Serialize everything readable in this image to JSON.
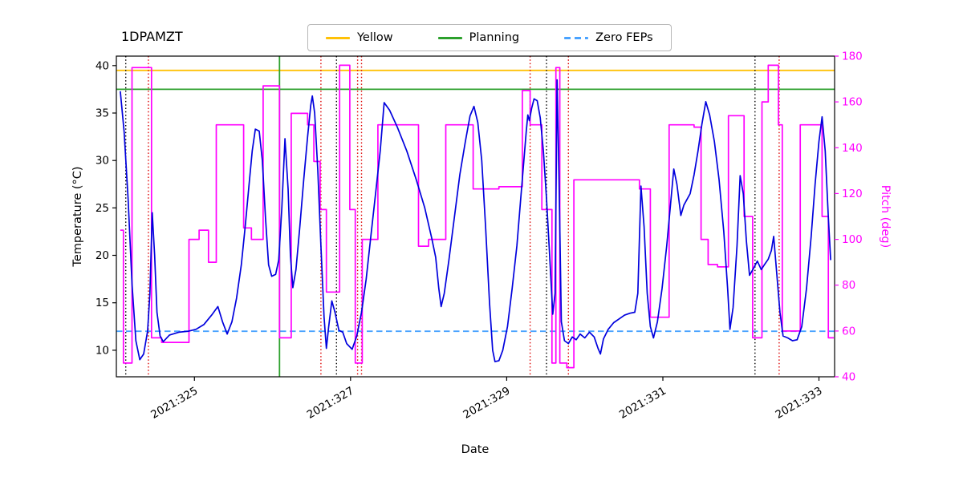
{
  "title": "1DPAMZT",
  "chart_data": {
    "type": "line",
    "title": "1DPAMZT",
    "xlabel": "Date",
    "ylabel_left": "Temperature (°C)",
    "ylabel_right": "Pitch (deg)",
    "legend_position": "top-center",
    "grid": false,
    "x_domain": [
      324.0,
      333.2
    ],
    "x_ticks": [
      {
        "v": 325,
        "label": "2021:325"
      },
      {
        "v": 327,
        "label": "2021:327"
      },
      {
        "v": 329,
        "label": "2021:329"
      },
      {
        "v": 331,
        "label": "2021:331"
      },
      {
        "v": 333,
        "label": "2021:333"
      }
    ],
    "y_left": {
      "range": [
        7.2,
        41.0
      ],
      "ticks": [
        10,
        15,
        20,
        25,
        30,
        35,
        40
      ],
      "color": "#000000"
    },
    "y_right": {
      "range": [
        40,
        180
      ],
      "ticks": [
        40,
        60,
        80,
        100,
        120,
        140,
        160,
        180
      ],
      "color": "#ff00ff"
    },
    "hlines": [
      {
        "label": "Yellow",
        "y": 39.5,
        "color": "#ffc107",
        "style": "solid"
      },
      {
        "label": "Planning",
        "y": 37.5,
        "color": "#2ca02c",
        "style": "solid"
      },
      {
        "label": "Zero FEPs",
        "y": 12.0,
        "color": "#4aa3ff",
        "style": "dashed"
      }
    ],
    "vlines": [
      {
        "x": 324.12,
        "color": "#000000",
        "style": "dotted"
      },
      {
        "x": 326.82,
        "color": "#000000",
        "style": "dotted"
      },
      {
        "x": 329.51,
        "color": "#000000",
        "style": "dotted"
      },
      {
        "x": 332.18,
        "color": "#000000",
        "style": "dotted"
      },
      {
        "x": 324.41,
        "color": "#dd0000",
        "style": "dotted"
      },
      {
        "x": 326.62,
        "color": "#dd0000",
        "style": "dotted"
      },
      {
        "x": 327.09,
        "color": "#dd0000",
        "style": "dotted"
      },
      {
        "x": 327.14,
        "color": "#dd0000",
        "style": "dotted"
      },
      {
        "x": 329.3,
        "color": "#dd0000",
        "style": "dotted"
      },
      {
        "x": 329.79,
        "color": "#dd0000",
        "style": "dotted"
      },
      {
        "x": 332.49,
        "color": "#dd0000",
        "style": "dotted"
      },
      {
        "x": 326.09,
        "color": "#2ca02c",
        "style": "solid"
      }
    ],
    "series": [
      {
        "name": "pitch",
        "axis": "right",
        "color": "#ff00ff",
        "step": true,
        "points": [
          [
            324.05,
            104
          ],
          [
            324.09,
            46
          ],
          [
            324.2,
            175
          ],
          [
            324.45,
            57
          ],
          [
            324.58,
            55
          ],
          [
            324.93,
            100
          ],
          [
            325.06,
            104
          ],
          [
            325.18,
            90
          ],
          [
            325.28,
            150
          ],
          [
            325.63,
            105
          ],
          [
            325.73,
            100
          ],
          [
            325.88,
            167
          ],
          [
            326.09,
            57
          ],
          [
            326.24,
            155
          ],
          [
            326.45,
            150
          ],
          [
            326.53,
            134
          ],
          [
            326.61,
            113
          ],
          [
            326.69,
            77
          ],
          [
            326.86,
            176
          ],
          [
            326.99,
            113
          ],
          [
            327.06,
            46
          ],
          [
            327.15,
            100
          ],
          [
            327.35,
            150
          ],
          [
            327.87,
            97
          ],
          [
            328.0,
            100
          ],
          [
            328.22,
            150
          ],
          [
            328.57,
            122
          ],
          [
            328.9,
            123
          ],
          [
            329.2,
            165
          ],
          [
            329.3,
            150
          ],
          [
            329.45,
            113
          ],
          [
            329.58,
            46
          ],
          [
            329.63,
            175
          ],
          [
            329.68,
            46
          ],
          [
            329.77,
            44
          ],
          [
            329.86,
            126
          ],
          [
            330.7,
            122
          ],
          [
            330.84,
            66
          ],
          [
            331.08,
            150
          ],
          [
            331.4,
            149
          ],
          [
            331.49,
            100
          ],
          [
            331.58,
            89
          ],
          [
            331.7,
            88
          ],
          [
            331.84,
            154
          ],
          [
            332.04,
            110
          ],
          [
            332.15,
            57
          ],
          [
            332.27,
            160
          ],
          [
            332.35,
            176
          ],
          [
            332.48,
            150
          ],
          [
            332.53,
            60
          ],
          [
            332.76,
            150
          ],
          [
            333.04,
            110
          ],
          [
            333.12,
            57
          ]
        ]
      },
      {
        "name": "temperature",
        "axis": "left",
        "color": "#0000dd",
        "step": false,
        "points": [
          [
            324.05,
            37.3
          ],
          [
            324.1,
            33
          ],
          [
            324.15,
            26
          ],
          [
            324.2,
            17
          ],
          [
            324.25,
            11
          ],
          [
            324.3,
            9.0
          ],
          [
            324.35,
            9.6
          ],
          [
            324.4,
            12
          ],
          [
            324.43,
            16
          ],
          [
            324.46,
            24.5
          ],
          [
            324.49,
            20
          ],
          [
            324.52,
            14
          ],
          [
            324.56,
            11.5
          ],
          [
            324.6,
            10.9
          ],
          [
            324.68,
            11.6
          ],
          [
            324.8,
            11.9
          ],
          [
            324.92,
            12.0
          ],
          [
            325.02,
            12.2
          ],
          [
            325.12,
            12.7
          ],
          [
            325.22,
            13.7
          ],
          [
            325.3,
            14.6
          ],
          [
            325.36,
            13.0
          ],
          [
            325.42,
            11.7
          ],
          [
            325.48,
            13.0
          ],
          [
            325.54,
            15.5
          ],
          [
            325.6,
            19.0
          ],
          [
            325.65,
            23.0
          ],
          [
            325.7,
            27.5
          ],
          [
            325.74,
            31.0
          ],
          [
            325.78,
            33.3
          ],
          [
            325.83,
            33.1
          ],
          [
            325.87,
            30.0
          ],
          [
            325.91,
            24.0
          ],
          [
            325.95,
            19.0
          ],
          [
            325.99,
            17.8
          ],
          [
            326.04,
            18.0
          ],
          [
            326.08,
            19.5
          ],
          [
            326.12,
            25.0
          ],
          [
            326.16,
            32.3
          ],
          [
            326.2,
            27.0
          ],
          [
            326.23,
            20.0
          ],
          [
            326.26,
            16.6
          ],
          [
            326.3,
            18.5
          ],
          [
            326.35,
            23.0
          ],
          [
            326.4,
            28.0
          ],
          [
            326.45,
            32.5
          ],
          [
            326.49,
            35.8
          ],
          [
            326.51,
            36.8
          ],
          [
            326.54,
            35.0
          ],
          [
            326.58,
            29.0
          ],
          [
            326.62,
            21.0
          ],
          [
            326.66,
            13.5
          ],
          [
            326.69,
            10.2
          ],
          [
            326.72,
            12.5
          ],
          [
            326.76,
            15.2
          ],
          [
            326.8,
            14.0
          ],
          [
            326.85,
            12.1
          ],
          [
            326.9,
            11.9
          ],
          [
            326.95,
            10.7
          ],
          [
            327.02,
            10.1
          ],
          [
            327.08,
            11.5
          ],
          [
            327.14,
            14.0
          ],
          [
            327.2,
            17.5
          ],
          [
            327.26,
            22.0
          ],
          [
            327.32,
            26.5
          ],
          [
            327.38,
            31.0
          ],
          [
            327.43,
            36.1
          ],
          [
            327.5,
            35.3
          ],
          [
            327.6,
            33.5
          ],
          [
            327.72,
            31.0
          ],
          [
            327.84,
            28.0
          ],
          [
            327.95,
            25.0
          ],
          [
            328.04,
            21.8
          ],
          [
            328.09,
            19.8
          ],
          [
            328.13,
            16.5
          ],
          [
            328.16,
            14.6
          ],
          [
            328.2,
            16.0
          ],
          [
            328.26,
            19.5
          ],
          [
            328.33,
            24.0
          ],
          [
            328.4,
            28.5
          ],
          [
            328.47,
            32.0
          ],
          [
            328.53,
            34.7
          ],
          [
            328.58,
            35.7
          ],
          [
            328.63,
            34.0
          ],
          [
            328.68,
            30.0
          ],
          [
            328.73,
            23.0
          ],
          [
            328.78,
            15.0
          ],
          [
            328.82,
            10.0
          ],
          [
            328.85,
            8.8
          ],
          [
            328.9,
            8.9
          ],
          [
            328.95,
            10.0
          ],
          [
            329.01,
            12.5
          ],
          [
            329.07,
            16.5
          ],
          [
            329.13,
            21.0
          ],
          [
            329.18,
            26.0
          ],
          [
            329.22,
            30.0
          ],
          [
            329.25,
            33.0
          ],
          [
            329.27,
            34.8
          ],
          [
            329.29,
            34.2
          ],
          [
            329.32,
            35.5
          ],
          [
            329.35,
            36.5
          ],
          [
            329.39,
            36.3
          ],
          [
            329.43,
            34.5
          ],
          [
            329.47,
            31.0
          ],
          [
            329.51,
            26.0
          ],
          [
            329.55,
            20.0
          ],
          [
            329.59,
            13.8
          ],
          [
            329.62,
            16.0
          ],
          [
            329.645,
            38.5
          ],
          [
            329.67,
            28.0
          ],
          [
            329.7,
            13.0
          ],
          [
            329.74,
            11.0
          ],
          [
            329.79,
            10.7
          ],
          [
            329.84,
            11.4
          ],
          [
            329.89,
            11.1
          ],
          [
            329.94,
            11.7
          ],
          [
            330.0,
            11.3
          ],
          [
            330.06,
            11.9
          ],
          [
            330.12,
            11.4
          ],
          [
            330.17,
            10.2
          ],
          [
            330.2,
            9.6
          ],
          [
            330.24,
            11.2
          ],
          [
            330.3,
            12.2
          ],
          [
            330.37,
            12.9
          ],
          [
            330.44,
            13.3
          ],
          [
            330.51,
            13.7
          ],
          [
            330.58,
            13.9
          ],
          [
            330.64,
            14.0
          ],
          [
            330.68,
            16.0
          ],
          [
            330.72,
            27.3
          ],
          [
            330.76,
            23.0
          ],
          [
            330.8,
            16.0
          ],
          [
            330.84,
            12.5
          ],
          [
            330.88,
            11.3
          ],
          [
            330.93,
            13.0
          ],
          [
            330.99,
            16.5
          ],
          [
            331.05,
            21.0
          ],
          [
            331.1,
            25.5
          ],
          [
            331.14,
            29.1
          ],
          [
            331.18,
            27.5
          ],
          [
            331.23,
            24.2
          ],
          [
            331.27,
            25.3
          ],
          [
            331.31,
            25.9
          ],
          [
            331.35,
            26.5
          ],
          [
            331.4,
            28.5
          ],
          [
            331.45,
            31.0
          ],
          [
            331.5,
            33.8
          ],
          [
            331.55,
            36.2
          ],
          [
            331.6,
            34.8
          ],
          [
            331.66,
            32.0
          ],
          [
            331.72,
            28.0
          ],
          [
            331.78,
            22.5
          ],
          [
            331.83,
            16.5
          ],
          [
            331.86,
            12.2
          ],
          [
            331.9,
            14.5
          ],
          [
            331.95,
            21.0
          ],
          [
            331.99,
            28.4
          ],
          [
            332.03,
            26.5
          ],
          [
            332.07,
            21.5
          ],
          [
            332.11,
            17.9
          ],
          [
            332.16,
            18.6
          ],
          [
            332.21,
            19.4
          ],
          [
            332.26,
            18.5
          ],
          [
            332.3,
            19.0
          ],
          [
            332.35,
            19.6
          ],
          [
            332.39,
            20.5
          ],
          [
            332.42,
            22.0
          ],
          [
            332.46,
            18.0
          ],
          [
            332.5,
            14.0
          ],
          [
            332.54,
            11.5
          ],
          [
            332.6,
            11.3
          ],
          [
            332.66,
            11.0
          ],
          [
            332.72,
            11.1
          ],
          [
            332.78,
            12.5
          ],
          [
            332.84,
            16.5
          ],
          [
            332.9,
            22.0
          ],
          [
            332.95,
            27.5
          ],
          [
            333.0,
            32.0
          ],
          [
            333.04,
            34.6
          ],
          [
            333.08,
            31.0
          ],
          [
            333.12,
            24.0
          ],
          [
            333.15,
            19.5
          ]
        ]
      }
    ]
  }
}
